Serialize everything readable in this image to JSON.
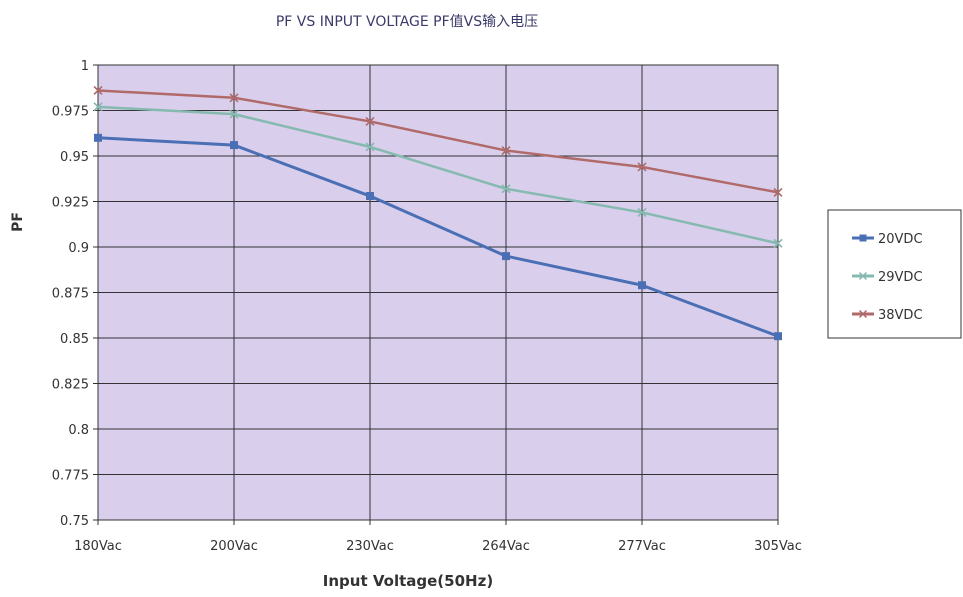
{
  "chart_data": {
    "type": "line",
    "title": "PF VS INPUT VOLTAGE   PF值VS输入电压",
    "xlabel": "Input Voltage(50Hz)",
    "ylabel": "PF",
    "categories": [
      "180Vac",
      "200Vac",
      "230Vac",
      "264Vac",
      "277Vac",
      "305Vac"
    ],
    "ylim": [
      0.75,
      1
    ],
    "yticks": [
      "0.75",
      "0.775",
      "0.8",
      "0.825",
      "0.85",
      "0.875",
      "0.9",
      "0.925",
      "0.95",
      "0.975",
      "1"
    ],
    "grid": true,
    "legend_position": "right",
    "series": [
      {
        "name": "20VDC",
        "color": "#4a6fb5",
        "values": [
          0.96,
          0.956,
          0.928,
          0.895,
          0.879,
          0.851
        ]
      },
      {
        "name": "29VDC",
        "color": "#86b9b0",
        "values": [
          0.977,
          0.973,
          0.955,
          0.932,
          0.919,
          0.902
        ]
      },
      {
        "name": "38VDC",
        "color": "#b06a6a",
        "values": [
          0.986,
          0.982,
          0.969,
          0.953,
          0.944,
          0.93
        ]
      }
    ]
  }
}
